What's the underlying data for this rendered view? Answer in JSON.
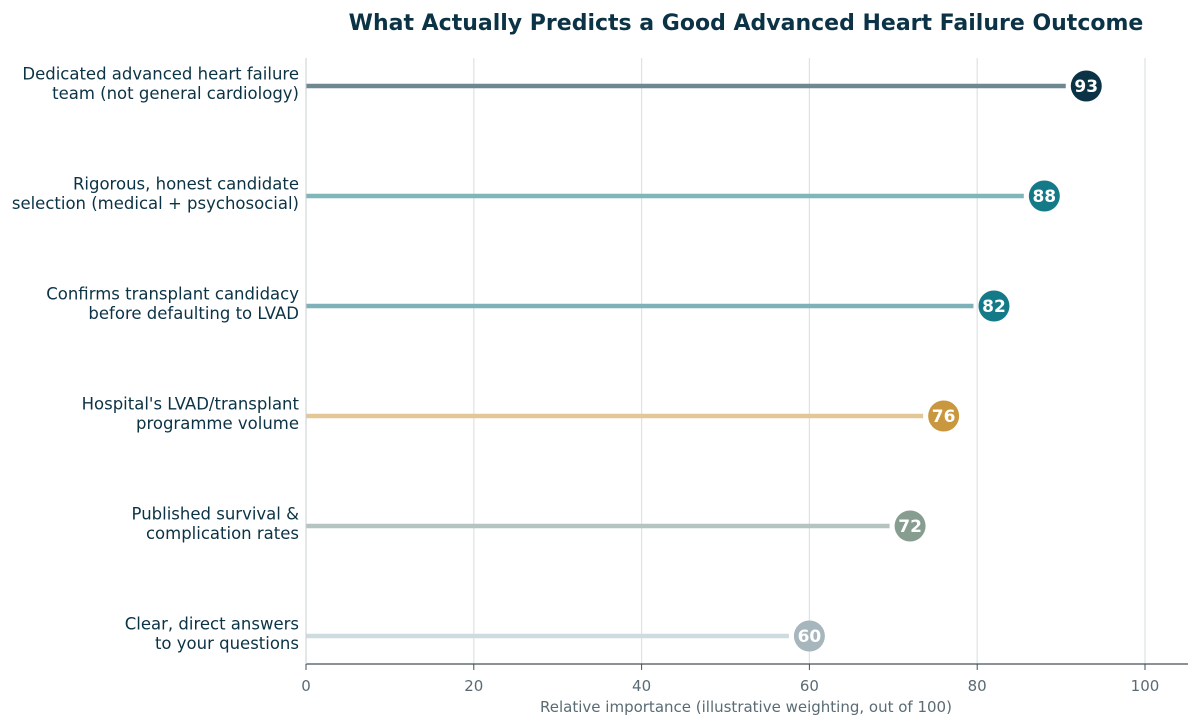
{
  "chart_data": {
    "type": "bar",
    "orientation": "horizontal",
    "style": "lollipop",
    "title": "What Actually Predicts a Good Advanced Heart Failure Outcome",
    "xlabel": "Relative importance (illustrative weighting, out of 100)",
    "ylabel": "",
    "xlim": [
      0,
      105
    ],
    "xticks": [
      0,
      20,
      40,
      60,
      80,
      100
    ],
    "grid": "vertical",
    "categories": [
      [
        "Dedicated advanced heart failure",
        "team (not general cardiology)"
      ],
      [
        "Rigorous, honest candidate",
        "selection (medical + psychosocial)"
      ],
      [
        "Confirms transplant candidacy",
        "before defaulting to LVAD"
      ],
      [
        "Hospital's LVAD/transplant",
        "programme volume"
      ],
      [
        "Published survival &",
        "complication rates"
      ],
      [
        "Clear, direct answers",
        "to your questions"
      ]
    ],
    "values": [
      93,
      88,
      82,
      76,
      72,
      60
    ],
    "dot_colors": [
      "#0b3345",
      "#157a87",
      "#157a87",
      "#c9973d",
      "#879d90",
      "#a6b6bc"
    ],
    "line_colors": [
      "#6e8891",
      "#7fb6b8",
      "#7fb1ba",
      "#e3c796",
      "#b5c4c0",
      "#cfdcdf"
    ]
  }
}
